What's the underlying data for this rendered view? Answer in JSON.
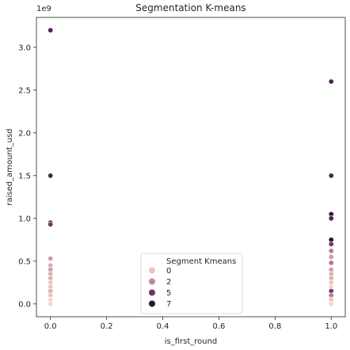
{
  "chart_data": {
    "type": "scatter",
    "title": "Segmentation K-means",
    "xlabel": "is_first_round",
    "ylabel": "raised_amount_usd",
    "y_offset_label": "1e9",
    "xlim": [
      -0.05,
      1.05
    ],
    "ylim": [
      -150000000,
      3350000000
    ],
    "x_ticks": [
      0.0,
      0.2,
      0.4,
      0.6,
      0.8,
      1.0
    ],
    "x_tick_labels": [
      "0.0",
      "0.2",
      "0.4",
      "0.6",
      "0.8",
      "1.0"
    ],
    "y_ticks": [
      0,
      500000000,
      1000000000,
      1500000000,
      2000000000,
      2500000000,
      3000000000
    ],
    "y_tick_labels": [
      "0.0",
      "0.5",
      "1.0",
      "1.5",
      "2.0",
      "2.5",
      "3.0"
    ],
    "grid": false,
    "legend": {
      "title": "Segment Kmeans",
      "placement": "lower-center",
      "entries": [
        {
          "label": "0",
          "color": "#e8c7be"
        },
        {
          "label": "2",
          "color": "#c28797"
        },
        {
          "label": "5",
          "color": "#6e3566"
        },
        {
          "label": "7",
          "color": "#2b1534"
        }
      ]
    },
    "segment_colors": {
      "0": "#f1d8cf",
      "1": "#e8c7be",
      "2": "#ddb0b2",
      "3": "#cf9aa6",
      "4": "#b67a92",
      "5": "#6e3566",
      "6": "#4f2457",
      "7": "#2b1534"
    },
    "points": [
      {
        "x": 0,
        "y": 3200000000,
        "segment": 6
      },
      {
        "x": 0,
        "y": 1500000000,
        "segment": 6
      },
      {
        "x": 0,
        "y": 950000000,
        "segment": 6
      },
      {
        "x": 0,
        "y": 930000000,
        "segment": 5
      },
      {
        "x": 0,
        "y": 530000000,
        "segment": 3
      },
      {
        "x": 0,
        "y": 450000000,
        "segment": 2
      },
      {
        "x": 0,
        "y": 400000000,
        "segment": 3
      },
      {
        "x": 0,
        "y": 350000000,
        "segment": 2
      },
      {
        "x": 0,
        "y": 300000000,
        "segment": 2
      },
      {
        "x": 0,
        "y": 250000000,
        "segment": 1
      },
      {
        "x": 0,
        "y": 200000000,
        "segment": 1
      },
      {
        "x": 0,
        "y": 150000000,
        "segment": 2
      },
      {
        "x": 0,
        "y": 100000000,
        "segment": 1
      },
      {
        "x": 0,
        "y": 50000000,
        "segment": 0
      },
      {
        "x": 0,
        "y": 0,
        "segment": 0
      },
      {
        "x": 1,
        "y": 2600000000,
        "segment": 6
      },
      {
        "x": 1,
        "y": 1500000000,
        "segment": 6
      },
      {
        "x": 1,
        "y": 1050000000,
        "segment": 7
      },
      {
        "x": 1,
        "y": 1000000000,
        "segment": 6
      },
      {
        "x": 1,
        "y": 750000000,
        "segment": 7
      },
      {
        "x": 1,
        "y": 700000000,
        "segment": 5
      },
      {
        "x": 1,
        "y": 620000000,
        "segment": 4
      },
      {
        "x": 1,
        "y": 550000000,
        "segment": 3
      },
      {
        "x": 1,
        "y": 480000000,
        "segment": 4
      },
      {
        "x": 1,
        "y": 400000000,
        "segment": 3
      },
      {
        "x": 1,
        "y": 350000000,
        "segment": 2
      },
      {
        "x": 1,
        "y": 300000000,
        "segment": 2
      },
      {
        "x": 1,
        "y": 250000000,
        "segment": 1
      },
      {
        "x": 1,
        "y": 200000000,
        "segment": 0
      },
      {
        "x": 1,
        "y": 150000000,
        "segment": 5
      },
      {
        "x": 1,
        "y": 100000000,
        "segment": 4
      },
      {
        "x": 1,
        "y": 50000000,
        "segment": 1
      },
      {
        "x": 1,
        "y": 0,
        "segment": 0
      }
    ]
  }
}
